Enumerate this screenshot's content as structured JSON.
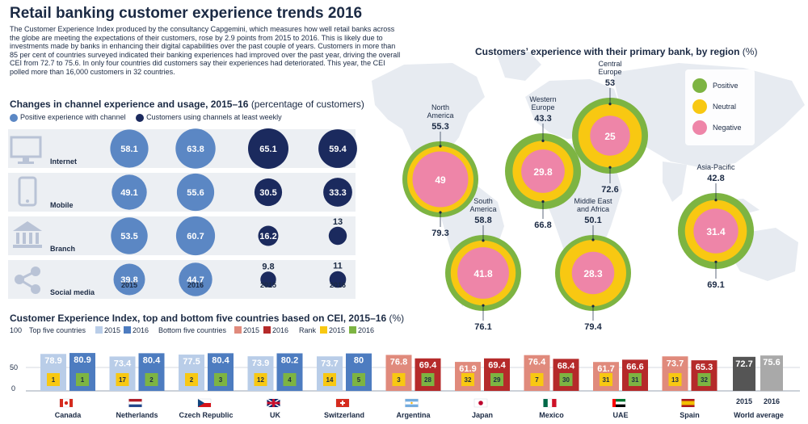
{
  "title": "Retail banking customer experience trends 2016",
  "intro": "The Customer Experience Index produced by the consultancy Capgemini, which measures how well retail banks across the globe are meeting the expectations of their customers, rose by 2.9 points from 2015 to 2016. This is likely due to investments made by banks in enhancing their digital capabilities over the past couple of years. Customers in more than 85 per cent of countries surveyed indicated their banking experiences had improved over the past year, driving the overall CEI from 72.7 to 75.6. In only four countries did customers say their experiences had deteriorated. This year, the CEI polled more than 16,000 customers in 32 countries.",
  "colors": {
    "navy": "#1b2a5e",
    "blue": "#5b87c4",
    "lightblue": "#b9cde8",
    "midblue": "#4d7cc0",
    "gray_row": "#dde2ea",
    "positive": "#7db442",
    "neutral": "#f8c812",
    "negative": "#ee85a8",
    "map": "#e7ebf1",
    "bottom2015": "#e08a7c",
    "bottom2016": "#b52a2a",
    "worldavg": "#555555"
  },
  "chart_data": [
    {
      "type": "bubble",
      "id": "channel",
      "title": "Changes in channel experience and usage, 2015–16",
      "title_suffix": "(percentage of customers)",
      "legend": [
        "Positive experience with channel",
        "Customers using channels at least weekly"
      ],
      "columns": [
        "2015",
        "2016",
        "2015",
        "2016"
      ],
      "rows": [
        {
          "channel": "Internet",
          "icon": "monitor-icon",
          "positive": [
            58.1,
            63.8
          ],
          "weekly": [
            65.1,
            59.4
          ]
        },
        {
          "channel": "Mobile",
          "icon": "mobile-phone-icon",
          "positive": [
            49.1,
            55.6
          ],
          "weekly": [
            30.5,
            33.3
          ]
        },
        {
          "channel": "Branch",
          "icon": "bank-building-icon",
          "positive": [
            53.5,
            60.7
          ],
          "weekly": [
            16.2,
            13
          ]
        },
        {
          "channel": "Social media",
          "icon": "share-icon",
          "positive": [
            39.8,
            44.7
          ],
          "weekly": [
            9.8,
            11
          ]
        }
      ]
    },
    {
      "type": "nested-circles",
      "id": "region",
      "title": "Customers’ experience  with their primary bank, by region",
      "title_suffix": "(%)",
      "legend": [
        "Positive",
        "Neutral",
        "Negative"
      ],
      "regions": [
        {
          "name": [
            "North",
            "America"
          ],
          "positive": 55.3,
          "neutral": 79.3,
          "negative": 49
        },
        {
          "name": [
            "Western",
            "Europe"
          ],
          "positive": 43.3,
          "neutral": 66.8,
          "negative": 29.8
        },
        {
          "name": [
            "Central",
            "Europe"
          ],
          "positive": 53,
          "neutral": 72.6,
          "negative": 25
        },
        {
          "name": [
            "South",
            "America"
          ],
          "positive": 58.8,
          "neutral": 76.1,
          "negative": 41.8
        },
        {
          "name": [
            "Middle East",
            "and Africa"
          ],
          "positive": 50.1,
          "neutral": 79.4,
          "negative": 28.3
        },
        {
          "name": [
            "Asia-Pacific"
          ],
          "positive": 42.8,
          "neutral": 69.1,
          "negative": 31.4
        }
      ]
    },
    {
      "type": "bar",
      "id": "cei",
      "title": "Customer Experience Index, top and bottom five countries based on CEI, 2015–16",
      "title_suffix": "(%)",
      "ylim": [
        0,
        100
      ],
      "yticks": [
        100,
        50,
        0
      ],
      "legend_top": "Top five countries",
      "legend_bottom": "Bottom five countries",
      "legend_rank": "Rank",
      "years": [
        "2015",
        "2016"
      ],
      "countries": [
        {
          "name": "Canada",
          "group": "top",
          "v2015": 78.9,
          "v2016": 80.9,
          "r2015": "1",
          "r2016": "1",
          "flag": "canada-flag-icon"
        },
        {
          "name": "Netherlands",
          "group": "top",
          "v2015": 73.4,
          "v2016": 80.4,
          "r2015": "17",
          "r2016": "2",
          "flag": "netherlands-flag-icon"
        },
        {
          "name": "Czech Republic",
          "group": "top",
          "v2015": 77.5,
          "v2016": 80.4,
          "r2015": "2",
          "r2016": "3",
          "flag": "czech-flag-icon"
        },
        {
          "name": "UK",
          "group": "top",
          "v2015": 73.9,
          "v2016": 80.2,
          "r2015": "12",
          "r2016": "4",
          "flag": "uk-flag-icon"
        },
        {
          "name": "Switzerland",
          "group": "top",
          "v2015": 73.7,
          "v2016": 80,
          "r2015": "14",
          "r2016": "5",
          "flag": "switzerland-flag-icon"
        },
        {
          "name": "Argentina",
          "group": "bottom",
          "v2015": 76.8,
          "v2016": 69.4,
          "r2015": "3",
          "r2016": "28",
          "flag": "argentina-flag-icon"
        },
        {
          "name": "Japan",
          "group": "bottom",
          "v2015": 61.9,
          "v2016": 69.4,
          "r2015": "32",
          "r2016": "29",
          "flag": "japan-flag-icon"
        },
        {
          "name": "Mexico",
          "group": "bottom",
          "v2015": 76.4,
          "v2016": 68.4,
          "r2015": "7",
          "r2016": "30",
          "flag": "mexico-flag-icon"
        },
        {
          "name": "UAE",
          "group": "bottom",
          "v2015": 61.7,
          "v2016": 66.6,
          "r2015": "31",
          "r2016": "31",
          "flag": "uae-flag-icon"
        },
        {
          "name": "Spain",
          "group": "bottom",
          "v2015": 73.7,
          "v2016": 65.3,
          "r2015": "13",
          "r2016": "32",
          "flag": "spain-flag-icon"
        }
      ],
      "world_average": {
        "name": "World average",
        "v2015": 72.7,
        "v2016": 75.6
      }
    }
  ]
}
